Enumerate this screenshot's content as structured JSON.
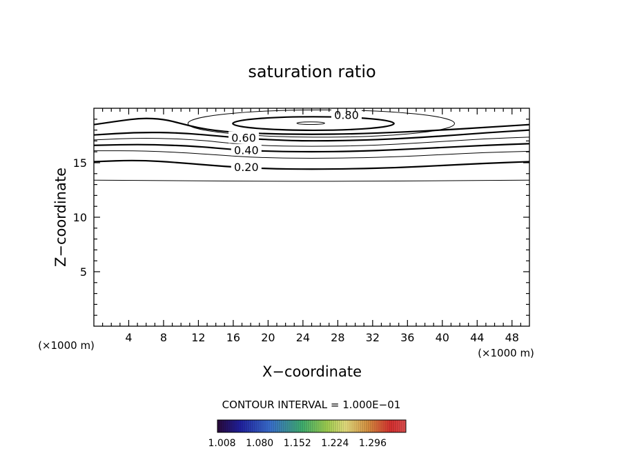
{
  "chart_data": {
    "type": "contour",
    "title": "saturation ratio",
    "xlabel": "X−coordinate",
    "ylabel": "Z−coordinate",
    "x_unit_left": "(×1000 m)",
    "x_unit_right": "(×1000 m)",
    "xlim": [
      0,
      50
    ],
    "ylim": [
      0,
      20
    ],
    "x_ticks": [
      4,
      8,
      12,
      16,
      20,
      24,
      28,
      32,
      36,
      40,
      44,
      48
    ],
    "y_ticks": [
      5,
      10,
      15
    ],
    "contour_interval_text": "CONTOUR INTERVAL = 1.000E−01",
    "contour_labels": [
      {
        "text": "0.80",
        "x": 29,
        "z": 19.35
      },
      {
        "text": "0.60",
        "x": 17.2,
        "z": 17.25
      },
      {
        "text": "0.40",
        "x": 17.5,
        "z": 16.1
      },
      {
        "text": "0.20",
        "x": 17.5,
        "z": 14.55
      }
    ],
    "colorbar": {
      "tick_labels": [
        "1.008",
        "1.080",
        "1.152",
        "1.224",
        "1.296"
      ]
    },
    "contours": [
      {
        "level": 0.0,
        "bold": false,
        "points": [
          [
            0,
            13.4
          ],
          [
            10,
            13.35
          ],
          [
            20,
            13.3
          ],
          [
            25,
            13.3
          ],
          [
            30,
            13.3
          ],
          [
            40,
            13.35
          ],
          [
            50,
            13.4
          ]
        ]
      },
      {
        "level": 0.2,
        "bold": true,
        "points": [
          [
            0,
            15.1
          ],
          [
            5,
            15.25
          ],
          [
            10,
            15.0
          ],
          [
            15,
            14.65
          ],
          [
            20,
            14.45
          ],
          [
            25,
            14.4
          ],
          [
            30,
            14.45
          ],
          [
            35,
            14.55
          ],
          [
            40,
            14.75
          ],
          [
            45,
            14.95
          ],
          [
            50,
            15.1
          ]
        ]
      },
      {
        "level": 0.3,
        "bold": false,
        "points": [
          [
            0,
            16.1
          ],
          [
            6,
            16.1
          ],
          [
            12,
            15.85
          ],
          [
            16,
            15.6
          ],
          [
            20,
            15.45
          ],
          [
            25,
            15.4
          ],
          [
            30,
            15.45
          ],
          [
            35,
            15.55
          ],
          [
            40,
            15.75
          ],
          [
            45,
            15.95
          ],
          [
            50,
            16.05
          ]
        ]
      },
      {
        "level": 0.4,
        "bold": true,
        "points": [
          [
            0,
            16.6
          ],
          [
            6,
            16.7
          ],
          [
            12,
            16.5
          ],
          [
            16,
            16.2
          ],
          [
            20,
            16.05
          ],
          [
            25,
            16.0
          ],
          [
            30,
            16.05
          ],
          [
            35,
            16.2
          ],
          [
            40,
            16.4
          ],
          [
            45,
            16.6
          ],
          [
            50,
            16.75
          ]
        ]
      },
      {
        "level": 0.5,
        "bold": false,
        "points": [
          [
            0,
            17.1
          ],
          [
            6,
            17.3
          ],
          [
            12,
            17.1
          ],
          [
            16,
            16.75
          ],
          [
            20,
            16.55
          ],
          [
            25,
            16.5
          ],
          [
            30,
            16.55
          ],
          [
            35,
            16.7
          ],
          [
            40,
            16.95
          ],
          [
            45,
            17.2
          ],
          [
            50,
            17.35
          ]
        ]
      },
      {
        "level": 0.6,
        "bold": true,
        "points": [
          [
            0,
            17.55
          ],
          [
            5,
            17.8
          ],
          [
            10,
            17.75
          ],
          [
            15,
            17.4
          ],
          [
            18,
            17.2
          ],
          [
            22,
            17.05
          ],
          [
            25,
            17.0
          ],
          [
            30,
            17.05
          ],
          [
            35,
            17.2
          ],
          [
            40,
            17.45
          ],
          [
            45,
            17.75
          ],
          [
            50,
            18.0
          ]
        ]
      },
      {
        "level": 0.7,
        "bold": true,
        "points": [
          [
            0,
            18.5
          ],
          [
            3,
            18.85
          ],
          [
            5.5,
            19.1
          ],
          [
            8,
            19.0
          ],
          [
            10,
            18.6
          ],
          [
            12,
            18.2
          ],
          [
            14,
            17.95
          ],
          [
            16,
            17.8
          ],
          [
            20,
            17.65
          ],
          [
            25,
            17.6
          ],
          [
            30,
            17.65
          ],
          [
            35,
            17.8
          ],
          [
            40,
            18.0
          ],
          [
            45,
            18.25
          ],
          [
            50,
            18.5
          ]
        ]
      },
      {
        "level": 0.75,
        "bold": false,
        "closed": true,
        "ellipse": {
          "cx": 26.1,
          "cz": 18.6,
          "rx": 15.3,
          "rz": 1.25
        }
      },
      {
        "level": 0.8,
        "bold": true,
        "closed": true,
        "ellipse": {
          "cx": 25.2,
          "cz": 18.6,
          "rx": 9.25,
          "rz": 0.62
        }
      },
      {
        "level": 0.9,
        "bold": false,
        "closed": true,
        "ellipse": {
          "cx": 24.9,
          "cz": 18.63,
          "rx": 1.6,
          "rz": 0.12
        }
      }
    ]
  }
}
